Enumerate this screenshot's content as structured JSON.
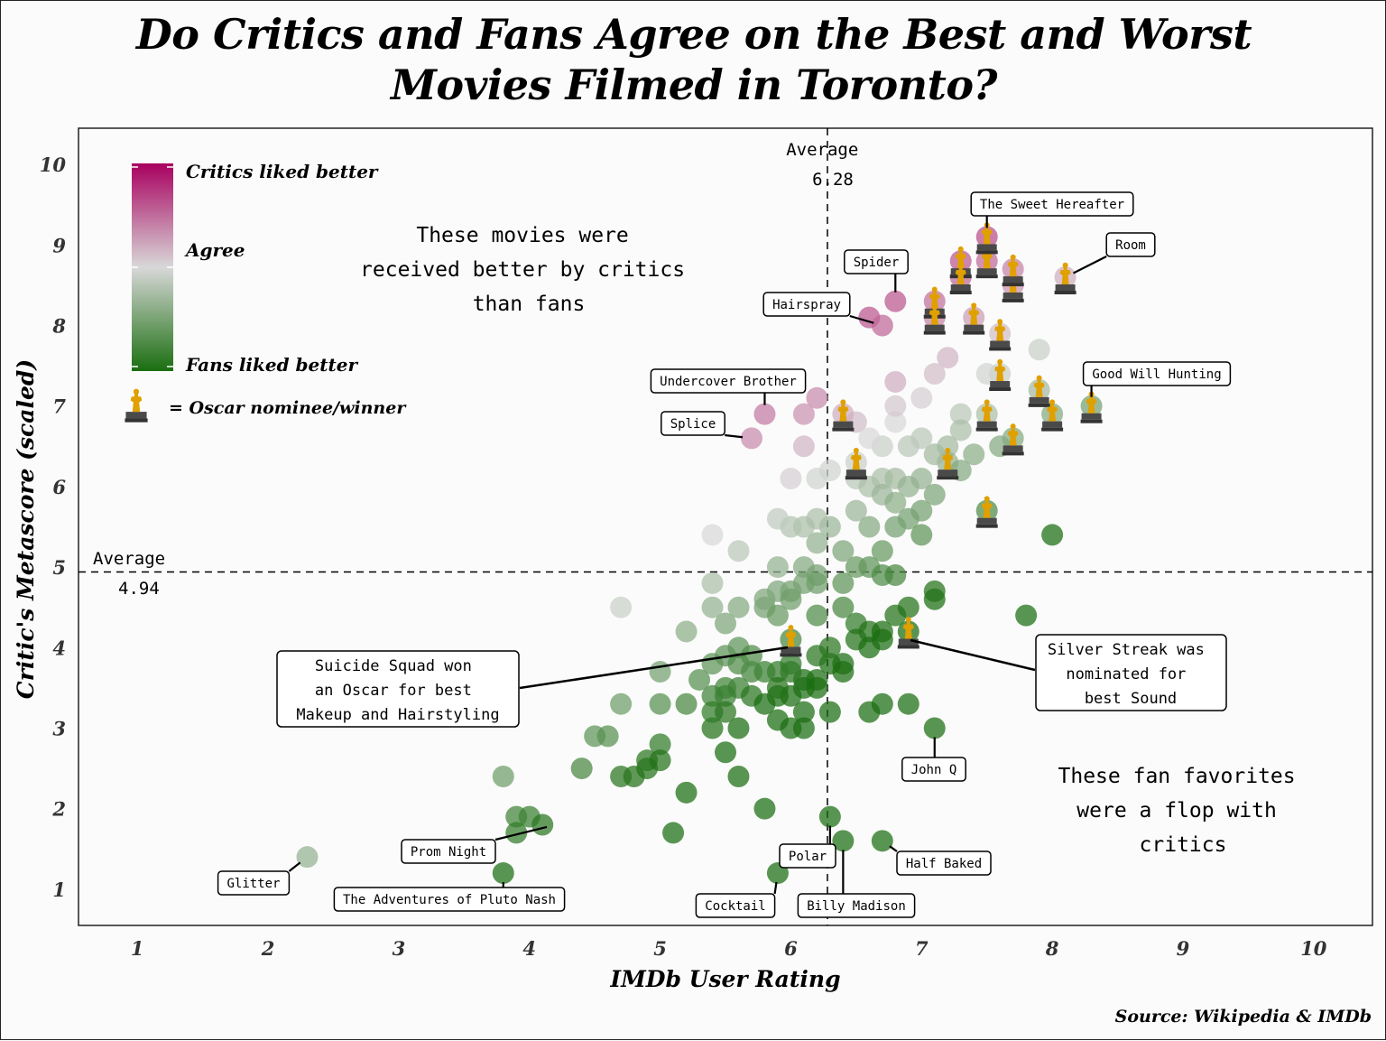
{
  "title_line1": "Do Critics and Fans Agree on the Best and Worst",
  "title_line2": "Movies Filmed in Toronto?",
  "source": "Source: Wikipedia & IMDb",
  "legend": {
    "top": "Critics liked better",
    "mid": "Agree",
    "bottom": "Fans liked better",
    "oscar": "= Oscar nominee/winner",
    "colors": {
      "critics": "#a8005f",
      "agree": "#d8d8d8",
      "fans": "#1a6e10"
    }
  },
  "oscar_color": "#e0a000",
  "annotations": {
    "critics_note": [
      "These movies were",
      "received better by critics",
      "than fans"
    ],
    "fans_note": [
      "These fan favorites",
      "were a flop with",
      "critics"
    ],
    "avg_x_label": [
      "Average",
      "6.28"
    ],
    "avg_y_label": [
      "Average",
      "4.94"
    ],
    "suicide_squad": [
      "Suicide Squad won",
      "an Oscar for best",
      "Makeup and Hairstyling"
    ],
    "silver_streak": [
      "Silver Streak was",
      "nominated for",
      "best Sound"
    ]
  },
  "chart_data": {
    "type": "scatter",
    "xlabel": "IMDb User Rating",
    "ylabel": "Critic's Metascore (scaled)",
    "xlim": [
      0.55,
      10.45
    ],
    "ylim": [
      0.55,
      10.45
    ],
    "xticks": [
      "1",
      "2",
      "3",
      "4",
      "5",
      "6",
      "7",
      "8",
      "9",
      "10"
    ],
    "yticks": [
      "1",
      "2",
      "3",
      "4",
      "5",
      "6",
      "7",
      "8",
      "9",
      "10"
    ],
    "avg_x": 6.28,
    "avg_y": 4.94,
    "labeled_points": [
      {
        "label": "The Sweet Hereafter",
        "x": 7.5,
        "y": 9.1,
        "oscar": true
      },
      {
        "label": "Room",
        "x": 8.1,
        "y": 8.6,
        "oscar": true
      },
      {
        "label": "Spider",
        "x": 6.8,
        "y": 8.3,
        "oscar": false
      },
      {
        "label": "Hairspray",
        "x": 6.7,
        "y": 8.0,
        "oscar": false
      },
      {
        "label": "Good Will Hunting",
        "x": 8.3,
        "y": 7.0,
        "oscar": true
      },
      {
        "label": "Undercover Brother",
        "x": 5.8,
        "y": 6.9,
        "oscar": false
      },
      {
        "label": "Splice",
        "x": 5.7,
        "y": 6.6,
        "oscar": false
      },
      {
        "label": "Glitter",
        "x": 2.3,
        "y": 1.4,
        "oscar": false
      },
      {
        "label": "Prom Night",
        "x": 4.2,
        "y": 1.8,
        "oscar": false
      },
      {
        "label": "The Adventures of Pluto Nash",
        "x": 3.8,
        "y": 1.2,
        "oscar": false
      },
      {
        "label": "Cocktail",
        "x": 5.9,
        "y": 1.2,
        "oscar": false
      },
      {
        "label": "Polar",
        "x": 6.3,
        "y": 1.9,
        "oscar": false
      },
      {
        "label": "Billy Madison",
        "x": 6.4,
        "y": 1.6,
        "oscar": false
      },
      {
        "label": "Half Baked",
        "x": 6.7,
        "y": 1.6,
        "oscar": false
      },
      {
        "label": "John Q",
        "x": 7.1,
        "y": 3.0,
        "oscar": false
      },
      {
        "label": "Suicide Squad",
        "x": 6.0,
        "y": 4.1,
        "oscar": true
      },
      {
        "label": "Silver Streak",
        "x": 6.9,
        "y": 4.2,
        "oscar": true
      }
    ],
    "points": [
      [
        7.3,
        8.8,
        1
      ],
      [
        7.3,
        8.6,
        1
      ],
      [
        7.5,
        8.8,
        1
      ],
      [
        7.7,
        8.5,
        1
      ],
      [
        7.7,
        8.7,
        1
      ],
      [
        7.1,
        8.3,
        1
      ],
      [
        7.1,
        8.1,
        1
      ],
      [
        7.4,
        8.1,
        1
      ],
      [
        7.6,
        7.9,
        1
      ],
      [
        7.9,
        7.7,
        0
      ],
      [
        7.6,
        7.4,
        1
      ],
      [
        7.5,
        7.4,
        0
      ],
      [
        7.2,
        7.6,
        0
      ],
      [
        7.1,
        7.4,
        0
      ],
      [
        6.8,
        7.3,
        0
      ],
      [
        7.9,
        7.2,
        1
      ],
      [
        8.0,
        6.9,
        1
      ],
      [
        7.5,
        6.9,
        1
      ],
      [
        7.7,
        6.6,
        1
      ],
      [
        7.6,
        6.5,
        0
      ],
      [
        7.3,
        6.9,
        0
      ],
      [
        7.3,
        6.7,
        0
      ],
      [
        7.4,
        6.4,
        0
      ],
      [
        7.2,
        6.5,
        0
      ],
      [
        7.2,
        6.3,
        1
      ],
      [
        7.3,
        6.2,
        0
      ],
      [
        7.1,
        6.4,
        0
      ],
      [
        7.0,
        6.6,
        0
      ],
      [
        6.9,
        6.5,
        0
      ],
      [
        6.7,
        6.5,
        0
      ],
      [
        6.8,
        6.8,
        0
      ],
      [
        6.8,
        7.0,
        0
      ],
      [
        7.0,
        7.1,
        0
      ],
      [
        6.5,
        6.8,
        0
      ],
      [
        6.4,
        6.9,
        1
      ],
      [
        6.6,
        6.6,
        0
      ],
      [
        6.5,
        6.3,
        1
      ],
      [
        6.3,
        6.2,
        0
      ],
      [
        6.2,
        6.1,
        0
      ],
      [
        6.1,
        6.5,
        0
      ],
      [
        6.1,
        6.9,
        0
      ],
      [
        6.2,
        7.1,
        0
      ],
      [
        6.6,
        8.1,
        0
      ],
      [
        6.0,
        6.1,
        0
      ],
      [
        6.5,
        6.1,
        0
      ],
      [
        6.6,
        6.0,
        0
      ],
      [
        6.7,
        6.1,
        0
      ],
      [
        6.8,
        6.1,
        0
      ],
      [
        6.9,
        6.0,
        0
      ],
      [
        7.0,
        6.1,
        0
      ],
      [
        7.1,
        5.9,
        0
      ],
      [
        7.5,
        5.7,
        1
      ],
      [
        8.0,
        5.4,
        0
      ],
      [
        6.7,
        5.9,
        0
      ],
      [
        6.8,
        5.8,
        0
      ],
      [
        6.9,
        5.6,
        0
      ],
      [
        7.0,
        5.7,
        0
      ],
      [
        6.5,
        5.7,
        0
      ],
      [
        6.6,
        5.5,
        0
      ],
      [
        6.8,
        5.5,
        0
      ],
      [
        7.0,
        5.4,
        0
      ],
      [
        6.7,
        5.2,
        0
      ],
      [
        6.6,
        5.0,
        0
      ],
      [
        6.7,
        4.9,
        0
      ],
      [
        6.8,
        4.9,
        0
      ],
      [
        6.5,
        5.0,
        0
      ],
      [
        6.4,
        5.2,
        0
      ],
      [
        6.2,
        5.3,
        0
      ],
      [
        6.3,
        5.5,
        0
      ],
      [
        6.1,
        5.5,
        0
      ],
      [
        6.2,
        5.6,
        0
      ],
      [
        6.0,
        5.5,
        0
      ],
      [
        5.9,
        5.6,
        0
      ],
      [
        5.9,
        5.0,
        0
      ],
      [
        6.1,
        5.0,
        0
      ],
      [
        5.4,
        5.4,
        0
      ],
      [
        5.6,
        5.2,
        0
      ],
      [
        5.4,
        4.8,
        0
      ],
      [
        6.0,
        4.7,
        0
      ],
      [
        6.1,
        4.8,
        0
      ],
      [
        6.2,
        4.9,
        0
      ],
      [
        6.4,
        4.8,
        0
      ],
      [
        6.4,
        4.5,
        0
      ],
      [
        6.5,
        4.3,
        0
      ],
      [
        6.6,
        4.2,
        0
      ],
      [
        6.7,
        4.2,
        0
      ],
      [
        6.8,
        4.4,
        0
      ],
      [
        6.9,
        4.5,
        0
      ],
      [
        7.1,
        4.6,
        0
      ],
      [
        7.1,
        4.7,
        0
      ],
      [
        7.8,
        4.4,
        0
      ],
      [
        6.5,
        4.1,
        0
      ],
      [
        6.6,
        4.0,
        0
      ],
      [
        6.7,
        4.1,
        0
      ],
      [
        6.2,
        4.4,
        0
      ],
      [
        6.4,
        3.8,
        0
      ],
      [
        6.3,
        3.8,
        0
      ],
      [
        6.2,
        3.9,
        0
      ],
      [
        6.2,
        3.6,
        0
      ],
      [
        6.1,
        3.6,
        0
      ],
      [
        6.0,
        3.7,
        0
      ],
      [
        5.9,
        3.7,
        0
      ],
      [
        5.8,
        3.7,
        0
      ],
      [
        5.7,
        3.7,
        0
      ],
      [
        5.6,
        3.5,
        0
      ],
      [
        5.5,
        3.5,
        0
      ],
      [
        5.4,
        3.4,
        0
      ],
      [
        5.5,
        3.4,
        0
      ],
      [
        5.7,
        3.4,
        0
      ],
      [
        5.8,
        3.3,
        0
      ],
      [
        5.9,
        3.4,
        0
      ],
      [
        6.0,
        3.4,
        0
      ],
      [
        6.2,
        3.5,
        0
      ],
      [
        6.3,
        3.2,
        0
      ],
      [
        6.1,
        3.2,
        0
      ],
      [
        6.0,
        3.0,
        0
      ],
      [
        5.9,
        3.1,
        0
      ],
      [
        6.1,
        3.0,
        0
      ],
      [
        6.6,
        3.2,
        0
      ],
      [
        6.7,
        3.3,
        0
      ],
      [
        6.9,
        3.3,
        0
      ],
      [
        5.4,
        3.0,
        0
      ],
      [
        5.6,
        3.0,
        0
      ],
      [
        5.4,
        3.2,
        0
      ],
      [
        5.5,
        2.7,
        0
      ],
      [
        5.6,
        2.4,
        0
      ],
      [
        5.2,
        2.2,
        0
      ],
      [
        5.1,
        1.7,
        0
      ],
      [
        5.8,
        2.0,
        0
      ],
      [
        4.7,
        3.3,
        0
      ],
      [
        5.0,
        3.3,
        0
      ],
      [
        5.2,
        3.3,
        0
      ],
      [
        5.3,
        3.6,
        0
      ],
      [
        5.4,
        3.8,
        0
      ],
      [
        5.5,
        3.9,
        0
      ],
      [
        5.6,
        4.0,
        0
      ],
      [
        5.5,
        4.3,
        0
      ],
      [
        5.4,
        4.5,
        0
      ],
      [
        5.6,
        4.5,
        0
      ],
      [
        5.8,
        4.5,
        0
      ],
      [
        5.8,
        4.6,
        0
      ],
      [
        5.9,
        4.7,
        0
      ],
      [
        5.9,
        4.4,
        0
      ],
      [
        6.0,
        4.6,
        0
      ],
      [
        6.2,
        4.8,
        0
      ],
      [
        5.2,
        4.2,
        0
      ],
      [
        5.0,
        3.7,
        0
      ],
      [
        4.7,
        4.5,
        0
      ],
      [
        4.5,
        2.9,
        0
      ],
      [
        4.6,
        2.9,
        0
      ],
      [
        4.4,
        2.5,
        0
      ],
      [
        4.8,
        2.4,
        0
      ],
      [
        4.9,
        2.5,
        0
      ],
      [
        4.9,
        2.6,
        0
      ],
      [
        5.0,
        2.8,
        0
      ],
      [
        5.0,
        2.6,
        0
      ],
      [
        4.7,
        2.4,
        0
      ],
      [
        4.0,
        1.9,
        0
      ],
      [
        3.9,
        1.9,
        0
      ],
      [
        4.1,
        1.8,
        0
      ],
      [
        3.9,
        1.7,
        0
      ],
      [
        3.8,
        2.4,
        0
      ],
      [
        5.9,
        1.2,
        0
      ],
      [
        6.3,
        1.9,
        0
      ],
      [
        6.4,
        1.6,
        0
      ],
      [
        6.7,
        1.6,
        0
      ],
      [
        7.1,
        3.0,
        0
      ],
      [
        6.0,
        4.1,
        1
      ],
      [
        6.9,
        4.2,
        1
      ],
      [
        3.8,
        1.2,
        0
      ],
      [
        2.3,
        1.4,
        0
      ],
      [
        5.7,
        6.6,
        0
      ],
      [
        5.8,
        6.9,
        0
      ],
      [
        6.8,
        8.3,
        0
      ],
      [
        6.7,
        8.0,
        0
      ],
      [
        7.5,
        9.1,
        1
      ],
      [
        8.1,
        8.6,
        1
      ],
      [
        8.3,
        7.0,
        1
      ],
      [
        5.6,
        3.8,
        0
      ],
      [
        5.7,
        3.9,
        0
      ],
      [
        5.5,
        3.2,
        0
      ],
      [
        6.4,
        3.7,
        0
      ],
      [
        6.1,
        3.5,
        0
      ],
      [
        6.0,
        3.8,
        0
      ],
      [
        5.9,
        3.5,
        0
      ],
      [
        6.3,
        4.0,
        0
      ]
    ]
  }
}
